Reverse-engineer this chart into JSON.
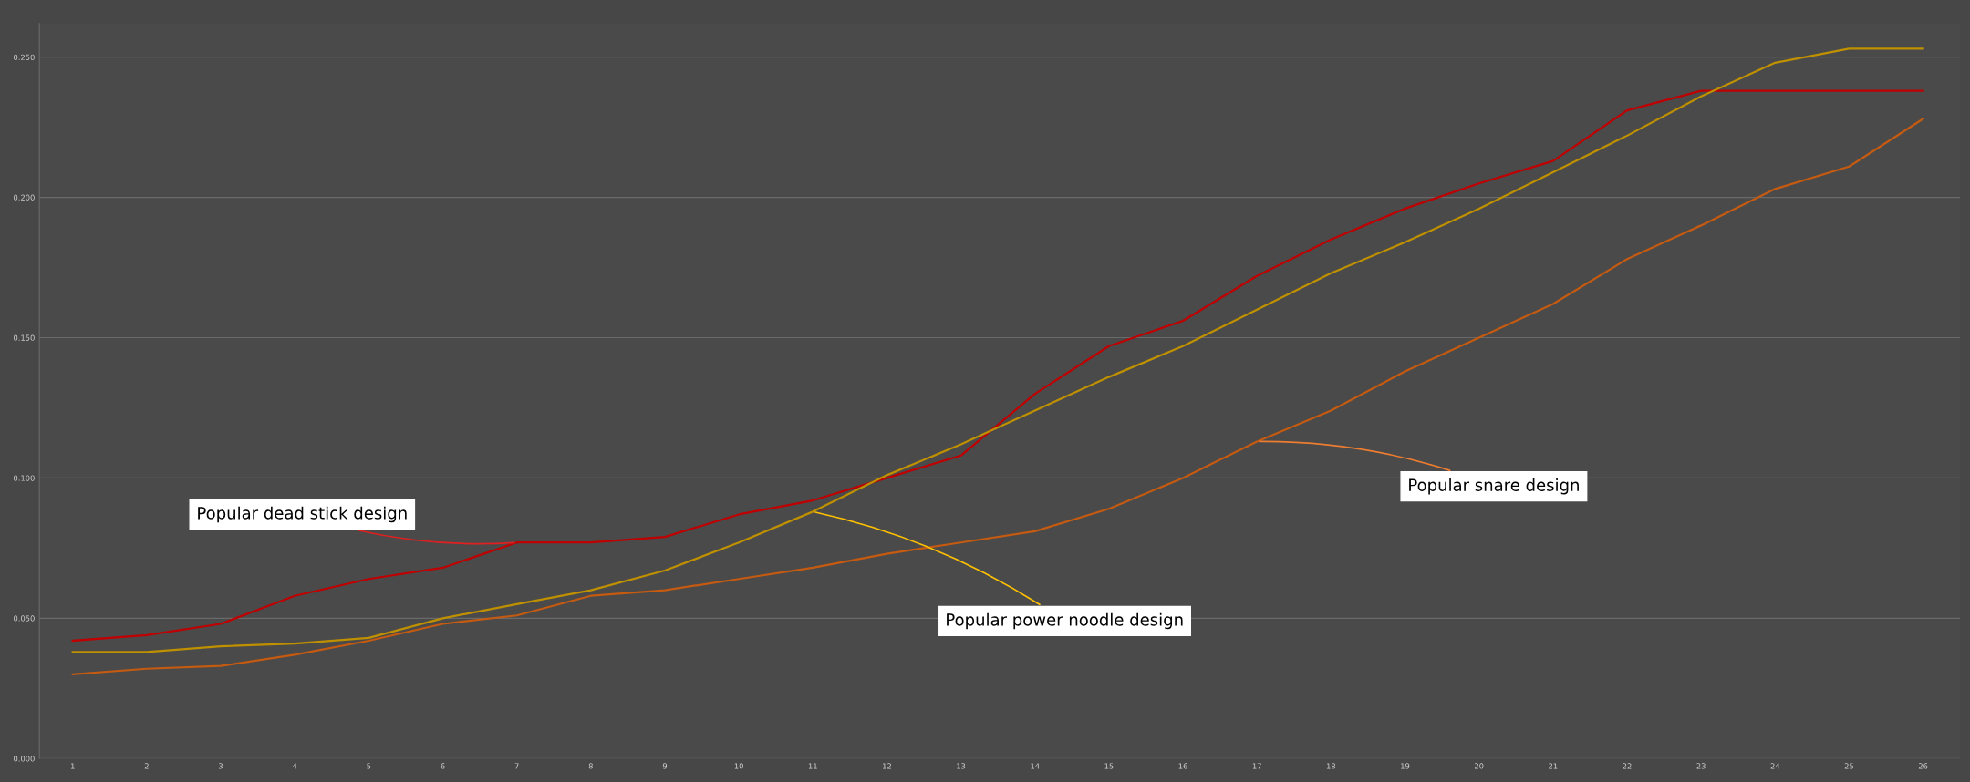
{
  "chart_data": {
    "type": "line",
    "categories": [
      "1",
      "2",
      "3",
      "4",
      "5",
      "6",
      "7",
      "8",
      "9",
      "10",
      "11",
      "12",
      "13",
      "14",
      "15",
      "16",
      "17",
      "18",
      "19",
      "20",
      "21",
      "22",
      "23",
      "24",
      "25",
      "26"
    ],
    "series": [
      {
        "color": "#c00000",
        "values": [
          0.042,
          0.044,
          0.048,
          0.058,
          0.064,
          0.068,
          0.077,
          0.077,
          0.079,
          0.087,
          0.092,
          0.1,
          0.108,
          0.13,
          0.147,
          0.156,
          0.172,
          0.185,
          0.196,
          0.205,
          0.213,
          0.231,
          0.238,
          0.238,
          0.238,
          0.238
        ]
      },
      {
        "color": "#bf9000",
        "values": [
          0.038,
          0.038,
          0.04,
          0.041,
          0.043,
          0.05,
          0.055,
          0.06,
          0.067,
          0.077,
          0.088,
          0.101,
          0.112,
          0.124,
          0.136,
          0.147,
          0.16,
          0.173,
          0.184,
          0.196,
          0.209,
          0.222,
          0.236,
          0.248,
          0.253,
          0.253
        ]
      },
      {
        "color": "#c55a11",
        "values": [
          0.03,
          0.032,
          0.033,
          0.037,
          0.042,
          0.048,
          0.051,
          0.058,
          0.06,
          0.064,
          0.068,
          0.073,
          0.077,
          0.081,
          0.089,
          0.1,
          0.113,
          0.124,
          0.138,
          0.15,
          0.162,
          0.178,
          0.19,
          0.203,
          0.211,
          0.228
        ]
      }
    ],
    "ylim": [
      0,
      0.262
    ],
    "yticks": [
      {
        "value": 0,
        "label": "0.000"
      },
      {
        "value": 0.05,
        "label": "0.050"
      },
      {
        "value": 0.1,
        "label": "0.100"
      },
      {
        "value": 0.15,
        "label": "0.150"
      },
      {
        "value": 0.2,
        "label": "0.200"
      },
      {
        "value": 0.25,
        "label": "0.250"
      }
    ],
    "grid": "y",
    "marker": "none",
    "line_style": "solid",
    "annotations": [
      {
        "text": "Popular dead stick design",
        "x": "7",
        "y": 0.077
      },
      {
        "text": "Popular power noodle design",
        "x": "11",
        "y": 0.088
      },
      {
        "text": "Popular snare design",
        "x": "17",
        "y": 0.113
      }
    ]
  }
}
